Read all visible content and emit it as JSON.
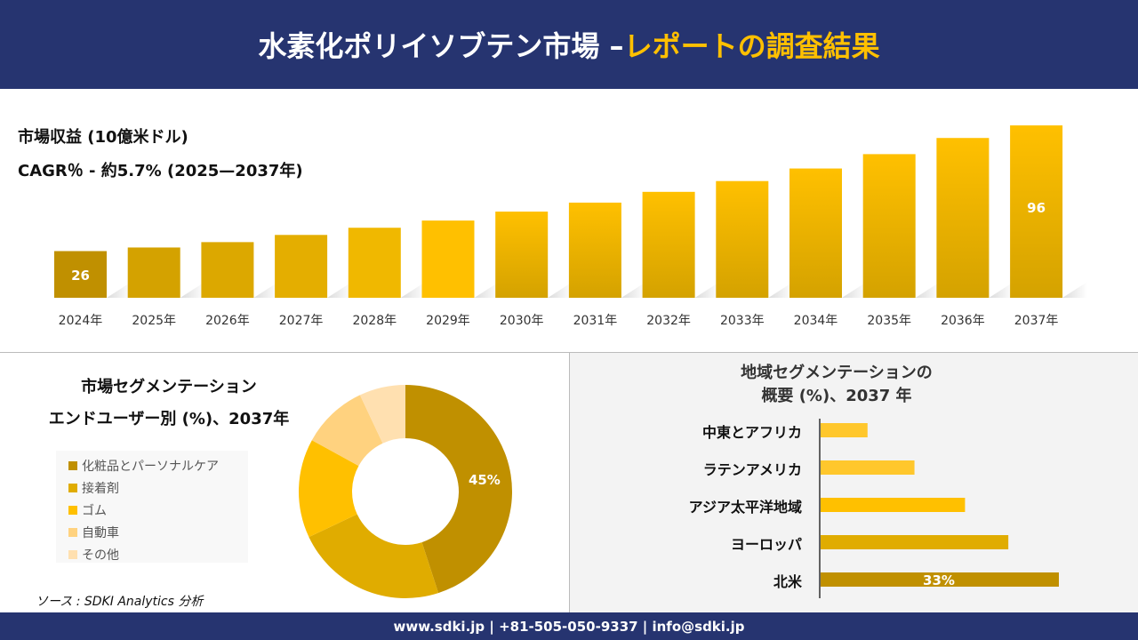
{
  "header": {
    "title_main": "水素化ポリイソブテン市場 –",
    "title_accent": "レポートの調査結果"
  },
  "top": {
    "revenue_label": "市場収益 (10億米ドル)",
    "cagr_label": "CAGR％ - 約5.7% (2025—2037年)"
  },
  "chart_data": [
    {
      "type": "bar",
      "categories": [
        "2024年",
        "2025年",
        "2026年",
        "2027年",
        "2028年",
        "2029年",
        "2030年",
        "2031年",
        "2032年",
        "2033年",
        "2034年",
        "2035年",
        "2036年",
        "2037年"
      ],
      "values": [
        26,
        28,
        31,
        35,
        39,
        43,
        48,
        53,
        59,
        65,
        72,
        80,
        89,
        96
      ],
      "data_labels": {
        "0": "26",
        "13": "96"
      },
      "colors": [
        "#C09000",
        "#D4A200",
        "#DCA800",
        "#E4AE00",
        "#F0B800",
        "#FFC000",
        "#FFC000",
        "#FFC000",
        "#FFC000",
        "#FFC000",
        "#FFC000",
        "#FFC000",
        "#FFC000",
        "#FFC000"
      ],
      "grid": false
    },
    {
      "type": "pie",
      "title": "市場セグメンテーション",
      "subtitle": "エンドユーザー別 (%)、2037年",
      "categories": [
        "化粧品とパーソナルケア",
        "接着剤",
        "ゴム",
        "自動車",
        "その他"
      ],
      "values": [
        45,
        23,
        15,
        10,
        7
      ],
      "data_labels": {
        "0": "45%"
      },
      "colors": [
        "#C09000",
        "#E0AC00",
        "#FFC000",
        "#FFD27F",
        "#FFE0B0"
      ],
      "legend": "left"
    },
    {
      "type": "bar",
      "orientation": "horizontal",
      "title": "地域セグメンテーションの",
      "subtitle": "概要 (%)、2037 年",
      "categories": [
        "中東とアフリカ",
        "ラテンアメリカ",
        "アジア太平洋地域",
        "ヨーロッパ",
        "北米"
      ],
      "values": [
        6.5,
        13,
        20,
        26,
        33
      ],
      "data_labels": {
        "4": "33%"
      },
      "colors": [
        "#FFC72C",
        "#FFC72C",
        "#FFC000",
        "#E0AC00",
        "#C09000"
      ]
    }
  ],
  "source": "ソース : SDKI Analytics 分析",
  "footer": "www.sdki.jp | +81-505-050-9337 | info@sdki.jp"
}
